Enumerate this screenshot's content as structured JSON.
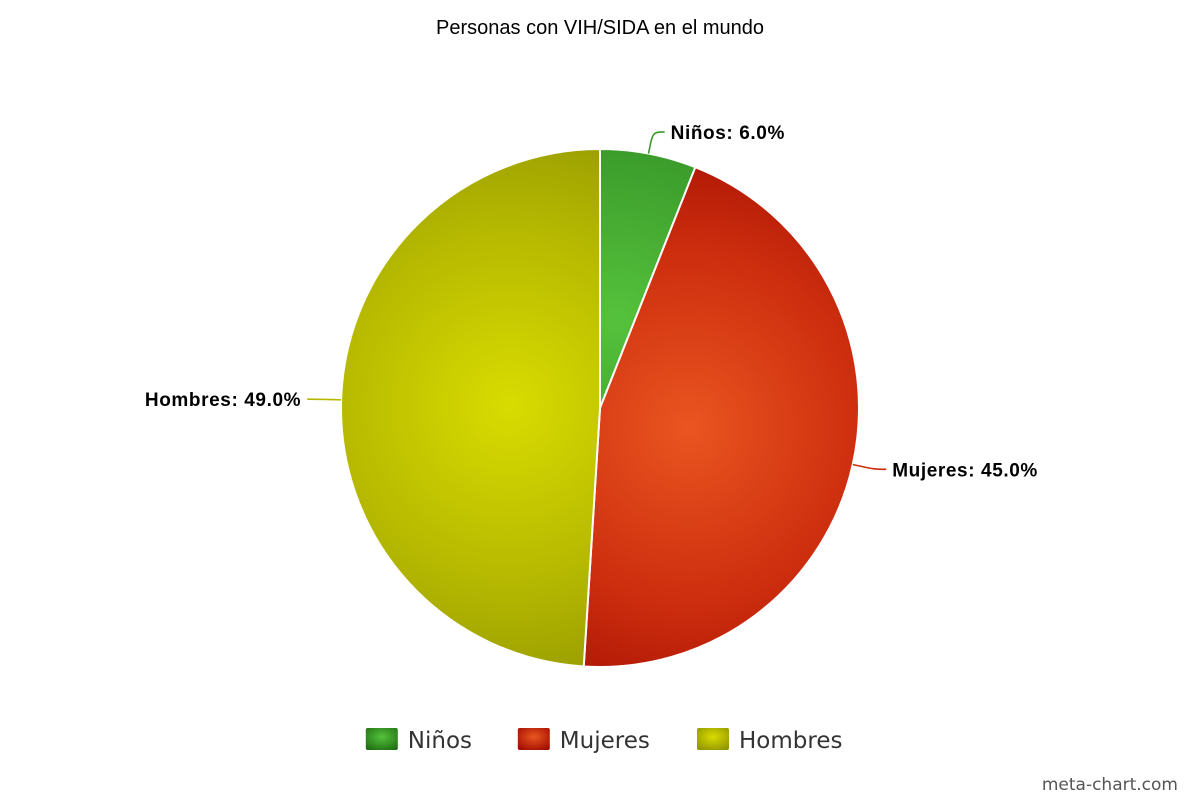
{
  "chart_data": {
    "type": "pie",
    "title": "Personas con VIH/SIDA en el mundo",
    "slices": [
      {
        "name": "Niños",
        "value": 6.0,
        "label": "Niños: 6.0%",
        "color": "#3a9a2a",
        "light": "#55c23c",
        "dark": "#1f6e12"
      },
      {
        "name": "Mujeres",
        "value": 45.0,
        "label": "Mujeres: 45.0%",
        "color": "#cc2d0e",
        "light": "#ea5520",
        "dark": "#a00c00"
      },
      {
        "name": "Hombres",
        "value": 49.0,
        "label": "Hombres: 49.0%",
        "color": "#b5b800",
        "light": "#d9dc00",
        "dark": "#8f9400"
      }
    ],
    "start_angle": "top",
    "direction": "clockwise",
    "legend": {
      "placement": "bottom-center",
      "items": [
        "Niños",
        "Mujeres",
        "Hombres"
      ]
    }
  },
  "credit": "meta-chart.com"
}
